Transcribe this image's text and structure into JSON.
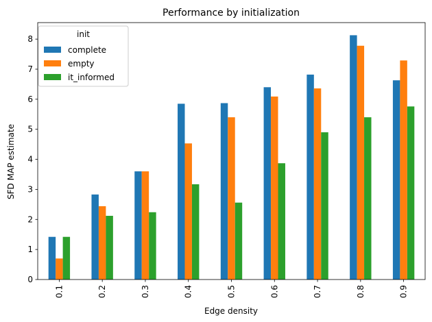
{
  "chart_data": {
    "type": "bar",
    "title": "Performance by initialization",
    "xlabel": "Edge density",
    "ylabel": "SFD MAP estimate",
    "categories": [
      "0.1",
      "0.2",
      "0.3",
      "0.4",
      "0.5",
      "0.6",
      "0.7",
      "0.8",
      "0.9"
    ],
    "ylim": [
      0,
      8.55
    ],
    "yticks": [
      0,
      1,
      2,
      3,
      4,
      5,
      6,
      7,
      8
    ],
    "grid": false,
    "legend": {
      "title": "init",
      "placement": "top-left"
    },
    "series": [
      {
        "name": "complete",
        "color": "#1f77b4",
        "values": [
          1.42,
          2.83,
          3.6,
          5.85,
          5.87,
          6.4,
          6.82,
          8.13,
          6.63
        ]
      },
      {
        "name": "empty",
        "color": "#ff7f0e",
        "values": [
          0.7,
          2.44,
          3.6,
          4.53,
          5.4,
          6.09,
          6.36,
          7.78,
          7.29
        ]
      },
      {
        "name": "it_informed",
        "color": "#2ca02c",
        "values": [
          1.42,
          2.12,
          2.24,
          3.17,
          2.56,
          3.87,
          4.9,
          5.4,
          5.76
        ]
      }
    ]
  }
}
